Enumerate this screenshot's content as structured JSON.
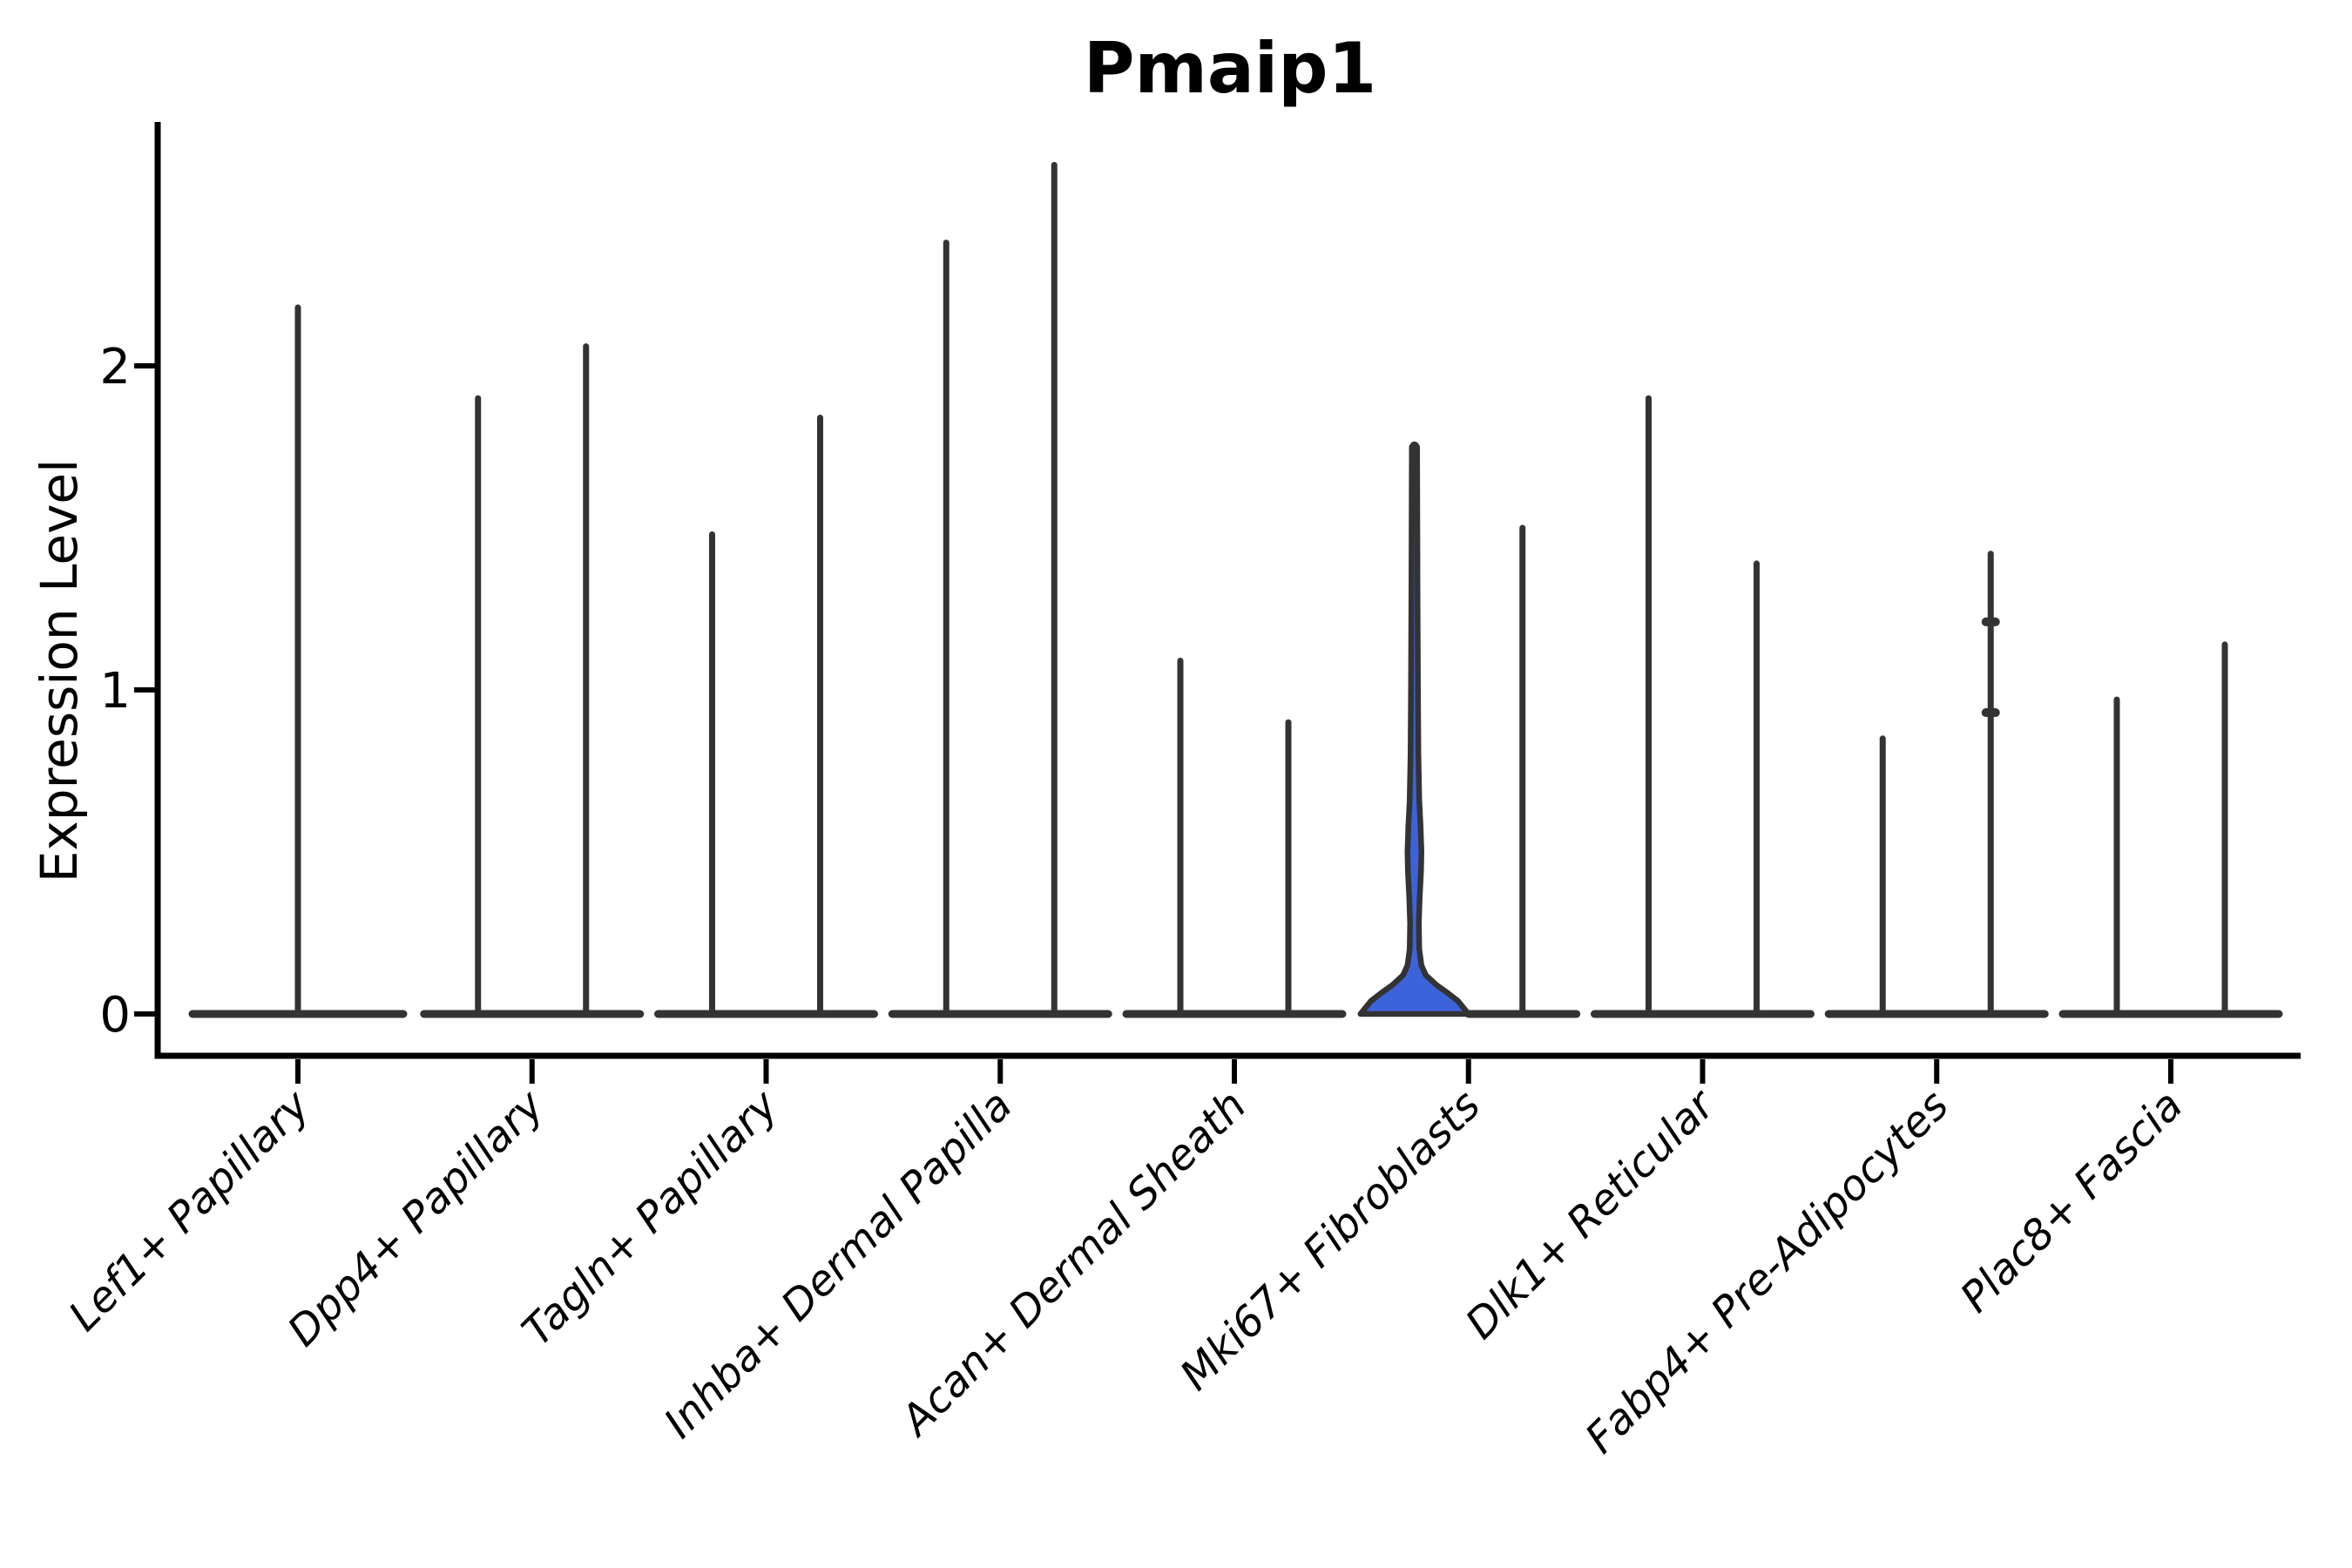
{
  "title": "Pmaip1",
  "chart_data": {
    "type": "violin",
    "title": "Pmaip1",
    "xlabel": "",
    "ylabel": "Expression Level",
    "ylim": [
      0,
      2.75
    ],
    "yticks": [
      "0",
      "1",
      "2"
    ],
    "ytick_values": [
      0,
      1,
      2
    ],
    "grid": false,
    "legend": "none",
    "description": "Violin plot of Pmaip1 expression level per fibroblast subtype; each category holds two thin split violins (single centered violin for the first category); most mass at 0 with thin spikes to the max expression; the left violin of Mki67+ Fibroblasts is filled blue with a visible density bulge.",
    "categories": [
      {
        "label": "Lef1+ Papillary",
        "violins": [
          {
            "position": "center",
            "max": 2.18
          }
        ]
      },
      {
        "label": "Dpp4+ Papillary",
        "violins": [
          {
            "position": "left",
            "max": 1.9
          },
          {
            "position": "right",
            "max": 2.06
          }
        ]
      },
      {
        "label": "Tagln+ Papillary",
        "violins": [
          {
            "position": "left",
            "max": 1.48
          },
          {
            "position": "right",
            "max": 1.84
          }
        ]
      },
      {
        "label": "Inhba+ Dermal Papilla",
        "violins": [
          {
            "position": "left",
            "max": 2.38
          },
          {
            "position": "right",
            "max": 2.62
          }
        ]
      },
      {
        "label": "Acan+ Dermal Sheath",
        "violins": [
          {
            "position": "left",
            "max": 1.09
          },
          {
            "position": "right",
            "max": 0.9
          }
        ]
      },
      {
        "label": "Mki67+ Fibroblasts",
        "violins": [
          {
            "position": "left",
            "max": 1.75,
            "highlighted": true
          },
          {
            "position": "right",
            "max": 1.5
          }
        ]
      },
      {
        "label": "Dlk1+ Reticular",
        "violins": [
          {
            "position": "left",
            "max": 1.9
          },
          {
            "position": "right",
            "max": 1.39
          }
        ]
      },
      {
        "label": "Fabp4+ Pre-Adipocytes",
        "violins": [
          {
            "position": "left",
            "max": 0.85
          },
          {
            "position": "right",
            "max": 1.42,
            "bumps": [
              1.21,
              0.93
            ]
          }
        ]
      },
      {
        "label": "Plac8+ Fascia",
        "violins": [
          {
            "position": "left",
            "max": 0.97
          },
          {
            "position": "right",
            "max": 1.14
          }
        ]
      }
    ],
    "highlight_profile": [
      [
        0.0,
        62
      ],
      [
        0.02,
        56
      ],
      [
        0.04,
        50
      ],
      [
        0.065,
        38
      ],
      [
        0.09,
        25
      ],
      [
        0.12,
        13
      ],
      [
        0.15,
        8
      ],
      [
        0.2,
        5.5
      ],
      [
        0.28,
        5
      ],
      [
        0.36,
        6
      ],
      [
        0.44,
        7.5
      ],
      [
        0.5,
        8
      ],
      [
        0.58,
        7
      ],
      [
        0.66,
        5.5
      ],
      [
        0.8,
        4.5
      ],
      [
        1.0,
        4
      ],
      [
        1.3,
        3.5
      ],
      [
        1.75,
        3
      ]
    ],
    "colors": {
      "highlight_fill": "#3D63DB",
      "violin_stroke": "#333333",
      "axis": "#000000",
      "text": "#000000",
      "background": "#FFFFFF"
    }
  }
}
